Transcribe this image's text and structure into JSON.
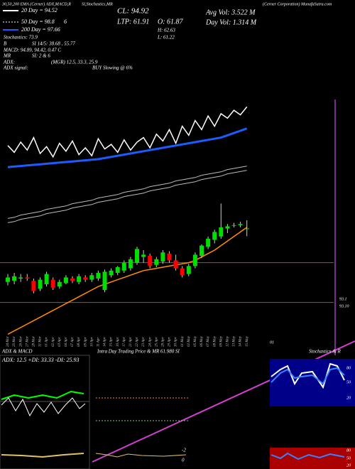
{
  "header": {
    "study": "30,50,200 EMA (Cerner) ADX,MACD,R",
    "study2": "SI,Stochastics,MR",
    "close": "CL: 94.92",
    "company": "(Cerner Corporation) MunafaSutra.com",
    "avg_vol": "Avg Vol: 3.522 M",
    "day_vol": "Day Vol: 1.314 M",
    "ltp": "LTP: 61.91",
    "open": "O: 61.87",
    "high": "H: 62.63",
    "low": "L: 61.22",
    "ma20": "20 Day = 94.52",
    "ma50": "50 Day = 98.8",
    "ma50_note": "6",
    "ma200": "200 Day = 97.66",
    "stoch": "Stochastics: 73.9",
    "b": "B",
    "si": "SI 14/5: 38.68 , 55.77",
    "macd": "MACD: 94.89, 94.42, 0.47 C",
    "mr": "MR",
    "si2": "SI: 2 & 6",
    "adx": "ADX:",
    "mgr": "(MGR) 12.5, 33.3, 25.9",
    "adx_signal": "ADX signal:",
    "signal": "BUY Slowing @ 6%"
  },
  "chart_data": {
    "type": "candlestick",
    "categories": [
      "24 Mar",
      "25 Mar",
      "26 Mar",
      "27 Mar",
      "28 Mar",
      "31 Mar",
      "01 Apr",
      "02 Apr",
      "03 Apr",
      "04 Apr",
      "07 Apr",
      "08 Apr",
      "09 Apr",
      "10 Apr",
      "11 Apr",
      "14 Apr",
      "15 Apr",
      "16 Apr",
      "17 Apr",
      "21 Apr",
      "22 Apr",
      "23 Apr",
      "24 Apr",
      "25 Apr",
      "28 Apr",
      "29 Apr",
      "30 Apr",
      "01 May",
      "02 May",
      "05 May",
      "06 May",
      "07 May",
      "08 May",
      "09 May",
      "12 May",
      "13 May",
      "14 May",
      "15 May"
    ],
    "open": [
      57.2,
      57.3,
      57.5,
      57.6,
      57.3,
      56.6,
      57.0,
      57.4,
      56.8,
      57.1,
      57.5,
      57.2,
      57.6,
      57.4,
      57.5,
      56.5,
      57.8,
      58.0,
      58.2,
      58.4,
      58.9,
      59.4,
      59.5,
      58.7,
      59.0,
      59.7,
      59.1,
      58.4,
      57.9,
      58.6,
      59.5,
      60.3,
      60.9,
      61.2,
      61.9,
      62.2,
      62.2,
      61.87
    ],
    "high": [
      57.9,
      58.0,
      57.9,
      57.9,
      57.5,
      57.6,
      58.1,
      57.6,
      57.4,
      57.8,
      57.7,
      57.9,
      57.8,
      58.0,
      58.2,
      58.3,
      58.4,
      58.6,
      59.1,
      59.4,
      60.3,
      60.0,
      59.7,
      59.4,
      60.0,
      59.9,
      59.6,
      58.6,
      58.8,
      59.8,
      60.5,
      61.2,
      61.8,
      64.1,
      62.3,
      62.4,
      62.5,
      62.63
    ],
    "low": [
      56.9,
      57.0,
      57.2,
      57.3,
      56.2,
      56.4,
      56.8,
      56.5,
      56.6,
      57.0,
      57.1,
      57.0,
      57.2,
      57.2,
      57.3,
      56.3,
      57.6,
      57.8,
      58.0,
      58.2,
      58.7,
      58.9,
      58.4,
      58.5,
      58.8,
      58.9,
      58.2,
      57.6,
      57.7,
      58.4,
      59.3,
      60.1,
      60.6,
      61.0,
      61.5,
      62.0,
      62.0,
      61.22
    ],
    "close": [
      57.6,
      57.7,
      57.6,
      57.5,
      56.4,
      57.4,
      57.9,
      56.7,
      57.2,
      57.6,
      57.3,
      57.7,
      57.4,
      57.8,
      58.0,
      58.1,
      58.2,
      58.5,
      58.9,
      59.2,
      60.1,
      59.6,
      58.6,
      59.2,
      59.8,
      59.1,
      58.4,
      57.8,
      58.6,
      59.6,
      60.4,
      61.0,
      61.6,
      62.0,
      62.1,
      62.2,
      62.3,
      61.91
    ],
    "up_color": "#00dd00",
    "down_color": "#ff0000",
    "ylim": [
      52,
      82
    ],
    "series": [
      {
        "color": "#ff8c00",
        "values": [
          52.6,
          52.9,
          53.2,
          53.5,
          53.8,
          54.1,
          54.4,
          54.7,
          55.0,
          55.3,
          55.6,
          55.9,
          56.2,
          56.5,
          56.8,
          57.0,
          57.2,
          57.4,
          57.6,
          57.8,
          58.0,
          58.2,
          58.3,
          58.4,
          58.5,
          58.6,
          58.7,
          58.8,
          58.9,
          59.1,
          59.4,
          59.7,
          60.0,
          60.4,
          60.8,
          61.2,
          61.6,
          62.0
        ]
      },
      {
        "color": "#ffffff",
        "values": [
          69.2,
          68.6,
          69.5,
          68.8,
          69.9,
          68.5,
          69.1,
          68.2,
          69.4,
          68.7,
          69.6,
          68.4,
          69.0,
          68.3,
          69.8,
          68.9,
          69.3,
          68.6,
          69.7,
          68.8,
          69.5,
          69.9,
          69.0,
          70.2,
          69.6,
          70.6,
          69.4,
          70.9,
          70.1,
          71.4,
          70.6,
          71.8,
          70.9,
          72.0,
          71.6,
          72.3,
          71.9,
          72.6
        ]
      },
      {
        "color": "#1e5bff",
        "values": [
          67.3,
          67.35,
          67.4,
          67.45,
          67.5,
          67.55,
          67.6,
          67.65,
          67.7,
          67.75,
          67.8,
          67.85,
          67.9,
          67.95,
          68.0,
          68.1,
          68.2,
          68.3,
          68.4,
          68.5,
          68.6,
          68.7,
          68.8,
          68.9,
          69.0,
          69.1,
          69.2,
          69.3,
          69.4,
          69.5,
          69.6,
          69.7,
          69.8,
          69.9,
          70.1,
          70.3,
          70.5,
          70.7
        ]
      },
      {
        "color": "#bbbbbb",
        "values": [
          62.6,
          62.7,
          62.9,
          63.0,
          63.1,
          63.2,
          63.4,
          63.5,
          63.6,
          63.7,
          63.9,
          64.0,
          64.1,
          64.2,
          64.4,
          64.5,
          64.6,
          64.7,
          64.9,
          65.0,
          65.1,
          65.2,
          65.4,
          65.5,
          65.6,
          65.7,
          65.9,
          66.0,
          66.1,
          66.2,
          66.4,
          66.5,
          66.6,
          66.7,
          66.9,
          67.0,
          67.1,
          67.2
        ]
      }
    ],
    "hlines": [
      58.9,
      55.4
    ],
    "hline_color": "#a0522d",
    "level_labels": [
      "93.1",
      "93.10"
    ],
    "corner_label": "01"
  },
  "panels": {
    "adx_title": "ADX & MACD",
    "adx_values": "ADX: 12.5 +DI: 33.33 -DI: 25.93",
    "intraday_title": "Intra Day Trading Price & MR 61.980 SI",
    "intraday_ticks": [
      "-2",
      "0"
    ],
    "stoch_title": "Stochastics & R",
    "stoch_ticks": [
      "80",
      "50",
      "20"
    ],
    "r_ticks": [
      "80",
      "50",
      "20"
    ]
  }
}
